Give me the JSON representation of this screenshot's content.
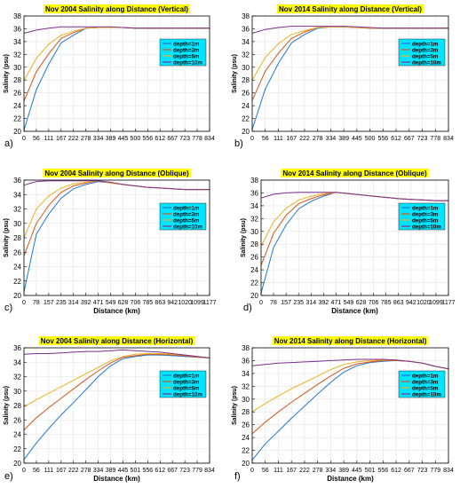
{
  "colors": {
    "depth_1m": "#1f77d4",
    "depth_3m": "#d9541a",
    "depth_5m": "#edb120",
    "depth_10m": "#7e2f8e",
    "title_bg": "#ffff00",
    "legend_bg": "#00e5ff"
  },
  "chart_data": [
    {
      "type": "line",
      "panel_label": "a)",
      "title": "Nov 2004 Salinity along Distance (Vertical)",
      "xlabel": "",
      "ylabel": "Salinity (psu)",
      "ylim": [
        20,
        38
      ],
      "yticks": [
        20,
        22,
        24,
        26,
        28,
        30,
        32,
        34,
        36,
        38
      ],
      "x": [
        0,
        56,
        111,
        167,
        222,
        278,
        334,
        389,
        445,
        500,
        556,
        612,
        667,
        723,
        778,
        834
      ],
      "xticks": [
        "0",
        "56",
        "111",
        "167",
        "222",
        "278",
        "334",
        "389",
        "445",
        "500",
        "556",
        "612",
        "667",
        "723",
        "778",
        "834"
      ],
      "grid": true,
      "legend_position": "right",
      "series": [
        {
          "name": "depth=1m",
          "values": [
            20.2,
            26.5,
            30.5,
            33.8,
            35.0,
            36.1,
            36.2,
            36.2,
            36.2,
            36.1,
            36.1,
            36.1,
            36.1,
            36.1,
            36.1,
            36.1
          ]
        },
        {
          "name": "depth=3m",
          "values": [
            24.7,
            29.3,
            32.1,
            34.5,
            35.4,
            36.1,
            36.2,
            36.2,
            36.2,
            36.1,
            36.1,
            36.1,
            36.1,
            36.1,
            36.1,
            36.1
          ]
        },
        {
          "name": "depth=5m",
          "values": [
            27.9,
            31.4,
            33.6,
            35.0,
            35.6,
            36.1,
            36.2,
            36.2,
            36.2,
            36.1,
            36.1,
            36.1,
            36.1,
            36.1,
            36.1,
            36.1
          ]
        },
        {
          "name": "depth=10m",
          "values": [
            35.3,
            35.8,
            36.1,
            36.3,
            36.3,
            36.3,
            36.3,
            36.3,
            36.2,
            36.1,
            36.1,
            36.1,
            36.1,
            36.1,
            36.1,
            36.1
          ]
        }
      ]
    },
    {
      "type": "line",
      "panel_label": "b)",
      "title": "Nov 2014 Salinity along Distance (Vertical)",
      "xlabel": "",
      "ylabel": "Salinity (psu)",
      "ylim": [
        20,
        38
      ],
      "yticks": [
        20,
        22,
        24,
        26,
        28,
        30,
        32,
        34,
        36,
        38
      ],
      "x": [
        0,
        56,
        111,
        167,
        222,
        278,
        334,
        389,
        445,
        500,
        556,
        612,
        667,
        723,
        778,
        834
      ],
      "xticks": [
        "0",
        "56",
        "111",
        "167",
        "222",
        "278",
        "334",
        "389",
        "445",
        "500",
        "556",
        "612",
        "667",
        "723",
        "778",
        "834"
      ],
      "grid": true,
      "legend_position": "right",
      "series": [
        {
          "name": "depth=1m",
          "values": [
            20.3,
            26.6,
            30.6,
            33.8,
            35.1,
            36.1,
            36.3,
            36.3,
            36.2,
            36.1,
            36.1,
            36.1,
            36.1,
            36.1,
            36.1,
            36.1
          ]
        },
        {
          "name": "depth=3m",
          "values": [
            24.8,
            29.4,
            32.2,
            34.5,
            35.5,
            36.2,
            36.3,
            36.3,
            36.2,
            36.1,
            36.1,
            36.1,
            36.1,
            36.1,
            36.1,
            36.1
          ]
        },
        {
          "name": "depth=5m",
          "values": [
            28.0,
            31.5,
            33.7,
            35.1,
            35.7,
            36.2,
            36.3,
            36.3,
            36.2,
            36.1,
            36.1,
            36.1,
            36.1,
            36.1,
            36.1,
            36.1
          ]
        },
        {
          "name": "depth=10m",
          "values": [
            35.3,
            35.9,
            36.2,
            36.4,
            36.4,
            36.4,
            36.4,
            36.4,
            36.3,
            36.2,
            36.1,
            36.1,
            36.1,
            36.1,
            36.1,
            36.1
          ]
        }
      ]
    },
    {
      "type": "line",
      "panel_label": "c)",
      "title": "Nov 2004 Salinity along Distance (Oblique)",
      "xlabel": "Distance (km)",
      "ylabel": "Salinity (psu)",
      "ylim": [
        20,
        36
      ],
      "yticks": [
        20,
        22,
        24,
        26,
        28,
        30,
        32,
        34,
        36
      ],
      "x": [
        0,
        78,
        157,
        235,
        314,
        392,
        471,
        549,
        628,
        706,
        785,
        863,
        942,
        1020,
        1099,
        1177
      ],
      "xticks": [
        "0",
        "78",
        "157",
        "235",
        "314",
        "392",
        "471",
        "549",
        "628",
        "706",
        "785",
        "863",
        "942",
        "1020",
        "1099",
        "1177"
      ],
      "grid": true,
      "legend_position": "right",
      "series": [
        {
          "name": "depth=1m",
          "values": [
            20.5,
            28.5,
            31.3,
            33.5,
            34.8,
            35.4,
            35.8,
            35.6,
            35.4,
            35.2,
            35.0,
            34.9,
            34.8,
            34.7,
            34.7,
            34.7
          ]
        },
        {
          "name": "depth=3m",
          "values": [
            25.5,
            30.0,
            32.5,
            34.3,
            35.2,
            35.6,
            35.9,
            35.6,
            35.4,
            35.2,
            35.0,
            34.9,
            34.8,
            34.7,
            34.7,
            34.7
          ]
        },
        {
          "name": "depth=5m",
          "values": [
            28.0,
            32.0,
            33.8,
            34.9,
            35.5,
            35.7,
            35.9,
            35.6,
            35.4,
            35.2,
            35.0,
            34.9,
            34.8,
            34.7,
            34.7,
            34.7
          ]
        },
        {
          "name": "depth=10m",
          "values": [
            35.3,
            35.8,
            35.9,
            35.9,
            35.9,
            35.9,
            35.9,
            35.7,
            35.4,
            35.2,
            35.0,
            34.9,
            34.8,
            34.7,
            34.7,
            34.7
          ]
        }
      ]
    },
    {
      "type": "line",
      "panel_label": "d)",
      "title": "Nov 2014 Salinity along Distance (Oblique)",
      "xlabel": "Distance (km)",
      "ylabel": "Salinity (psu)",
      "ylim": [
        20,
        38
      ],
      "yticks": [
        20,
        22,
        24,
        26,
        28,
        30,
        32,
        34,
        36,
        38
      ],
      "x": [
        0,
        78,
        157,
        235,
        314,
        392,
        471,
        549,
        628,
        706,
        785,
        863,
        942,
        1020,
        1099,
        1177
      ],
      "xticks": [
        "0",
        "78",
        "157",
        "235",
        "314",
        "392",
        "471",
        "549",
        "628",
        "706",
        "785",
        "863",
        "942",
        "1020",
        "1099",
        "1177"
      ],
      "grid": true,
      "legend_position": "right",
      "series": [
        {
          "name": "depth=1m",
          "values": [
            20.4,
            27.5,
            31.0,
            33.5,
            34.7,
            35.5,
            36.1,
            35.9,
            35.7,
            35.5,
            35.3,
            35.1,
            35.0,
            34.9,
            34.8,
            34.8
          ]
        },
        {
          "name": "depth=3m",
          "values": [
            24.7,
            29.7,
            32.5,
            34.3,
            35.1,
            35.7,
            36.1,
            35.9,
            35.7,
            35.5,
            35.3,
            35.1,
            35.0,
            34.9,
            34.8,
            34.8
          ]
        },
        {
          "name": "depth=5m",
          "values": [
            27.7,
            31.5,
            33.6,
            34.9,
            35.5,
            35.9,
            36.1,
            35.9,
            35.7,
            35.5,
            35.3,
            35.1,
            35.0,
            34.9,
            34.8,
            34.8
          ]
        },
        {
          "name": "depth=10m",
          "values": [
            35.2,
            35.8,
            36.0,
            36.1,
            36.1,
            36.1,
            36.1,
            35.9,
            35.7,
            35.5,
            35.3,
            35.1,
            35.0,
            34.9,
            34.8,
            34.8
          ]
        }
      ]
    },
    {
      "type": "line",
      "panel_label": "e)",
      "title": "Nov 2004 Salinity along Distance (Horizontal)",
      "xlabel": "Distance (km)",
      "ylabel": "Salinity (psu)",
      "ylim": [
        20,
        36
      ],
      "yticks": [
        20,
        22,
        24,
        26,
        28,
        30,
        32,
        34,
        36
      ],
      "x": [
        0,
        56,
        111,
        167,
        222,
        278,
        334,
        389,
        445,
        501,
        556,
        612,
        667,
        723,
        779,
        834
      ],
      "xticks": [
        "0",
        "56",
        "111",
        "167",
        "222",
        "278",
        "334",
        "389",
        "445",
        "501",
        "556",
        "612",
        "667",
        "723",
        "779",
        "834"
      ],
      "grid": true,
      "legend_position": "right",
      "series": [
        {
          "name": "depth=1m",
          "values": [
            20.5,
            22.8,
            24.8,
            26.7,
            28.4,
            30.2,
            32.0,
            33.5,
            34.5,
            34.8,
            35.0,
            35.0,
            34.9,
            34.8,
            34.7,
            34.6
          ]
        },
        {
          "name": "depth=3m",
          "values": [
            24.6,
            26.3,
            27.7,
            29.0,
            30.3,
            31.6,
            32.8,
            33.9,
            34.7,
            34.9,
            35.1,
            35.1,
            35.0,
            34.9,
            34.7,
            34.6
          ]
        },
        {
          "name": "depth=5m",
          "values": [
            27.8,
            28.8,
            29.7,
            30.6,
            31.5,
            32.4,
            33.3,
            34.2,
            34.8,
            35.1,
            35.2,
            35.2,
            35.1,
            35.0,
            34.8,
            34.6
          ]
        },
        {
          "name": "depth=10m",
          "values": [
            35.1,
            35.2,
            35.2,
            35.3,
            35.4,
            35.5,
            35.5,
            35.6,
            35.7,
            35.6,
            35.5,
            35.4,
            35.2,
            35.0,
            34.8,
            34.6
          ]
        }
      ]
    },
    {
      "type": "line",
      "panel_label": "f)",
      "title": "Nov 2014 Salinity along Distance (Horizontal)",
      "xlabel": "Distance (km)",
      "ylabel": "Salinity (psu)",
      "ylim": [
        20,
        38
      ],
      "yticks": [
        20,
        22,
        24,
        26,
        28,
        30,
        32,
        34,
        36,
        38
      ],
      "x": [
        0,
        56,
        111,
        167,
        222,
        278,
        334,
        389,
        445,
        501,
        556,
        612,
        667,
        723,
        779,
        834
      ],
      "xticks": [
        "0",
        "56",
        "111",
        "167",
        "222",
        "278",
        "334",
        "389",
        "445",
        "501",
        "556",
        "612",
        "667",
        "723",
        "779",
        "834"
      ],
      "grid": true,
      "legend_position": "right",
      "series": [
        {
          "name": "depth=1m",
          "values": [
            20.5,
            23.0,
            25.0,
            27.0,
            28.9,
            30.8,
            32.6,
            34.2,
            35.2,
            35.7,
            35.9,
            36.0,
            35.9,
            35.6,
            35.1,
            34.7
          ]
        },
        {
          "name": "depth=3m",
          "values": [
            24.6,
            26.4,
            28.0,
            29.5,
            30.9,
            32.3,
            33.6,
            34.8,
            35.5,
            35.8,
            36.0,
            36.0,
            35.9,
            35.6,
            35.1,
            34.7
          ]
        },
        {
          "name": "depth=5m",
          "values": [
            28.0,
            29.3,
            30.5,
            31.6,
            32.6,
            33.6,
            34.6,
            35.4,
            35.8,
            36.0,
            36.1,
            36.1,
            35.9,
            35.6,
            35.1,
            34.7
          ]
        },
        {
          "name": "depth=10m",
          "values": [
            35.2,
            35.4,
            35.6,
            35.7,
            35.8,
            35.9,
            36.0,
            36.1,
            36.2,
            36.2,
            36.2,
            36.1,
            35.9,
            35.6,
            35.1,
            34.7
          ]
        }
      ]
    }
  ]
}
